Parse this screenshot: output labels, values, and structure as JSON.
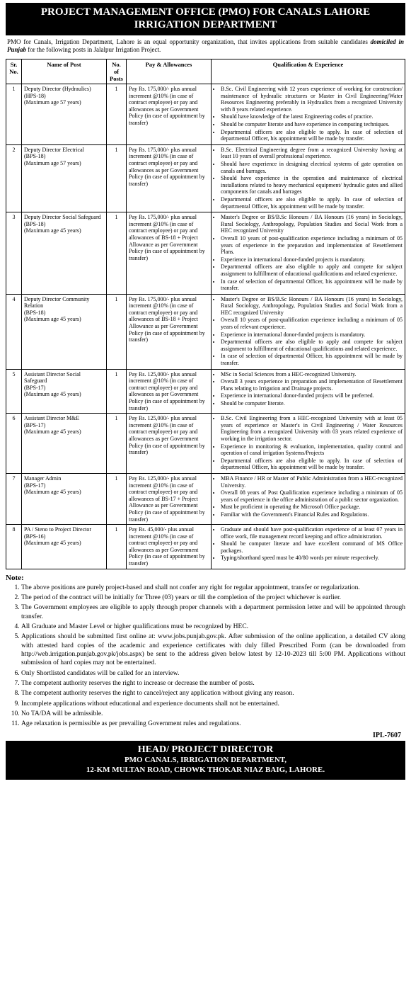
{
  "header": {
    "line1": "PROJECT MANAGEMENT OFFICE (PMO) FOR CANALS LAHORE",
    "line2": "IRRIGATION DEPARTMENT"
  },
  "intro": {
    "prefix": "PMO for Canals, Irrigation Department, Lahore is an equal opportunity organization, that invites applications from suitable candidates ",
    "emph": "domiciled in Punjab",
    "suffix": " for the following posts in Jalalpur Irrigation Project."
  },
  "table": {
    "headers": {
      "sr": "Sr. No.",
      "name": "Name of Post",
      "num": "No. of Posts",
      "pay": "Pay & Allowances",
      "qual": "Qualification & Experience"
    },
    "rows": [
      {
        "sr": "1",
        "name": "Deputy Director (Hydraulics)\n(HPS-18)\n(Maximum age 57 years)",
        "num": "1",
        "pay": "Pay Rs. 175,000/- plus annual increment @10% (in case of contract employee) or pay and allowances as per Government Policy (in case of appointment by transfer)",
        "qual": [
          "B.Sc. Civil Engineering with 12 years experience of working for construction/ maintenance of hydraulic structures or Master in Civil Engineering/Water Resources Engineering preferably in Hydraulics from a recognized University with 8 years related experience.",
          "Should have knowledge of the latest Engineering codes of practice.",
          "Should be computer literate and have experience in computing techniques.",
          "Departmental officers are also eligible to apply. In case of selection of departmental Officer, his appointment will be made by transfer."
        ]
      },
      {
        "sr": "2",
        "name": "Deputy Director Electrical\n(BPS-18)\n(Maximum age 57 years)",
        "num": "1",
        "pay": "Pay Rs. 175,000/- plus annual increment @10% (in case of contract employee) or pay and allowances as per Government Policy (in case of appointment by transfer)",
        "qual": [
          "B.Sc. Electrical Engineering degree from a recognized University having at least 10 years of overall professional experience.",
          "Should have experience in designing electrical systems of gate operation on canals and barrages.",
          "Should have experience in the operation and maintenance of electrical installations related to heavy mechanical equipment/ hydraulic gates and allied components for canals and barrages",
          "Departmental officers are also eligible to apply. In case of selection of departmental Officer, his appointment will be made by transfer."
        ]
      },
      {
        "sr": "3",
        "name": "Deputy Director Social Safeguard\n(BPS-18)\n(Maximum age 45 years)",
        "num": "1",
        "pay": "Pay Rs. 175,000/- plus annual increment @10% (in case of contract employee) or pay and allowances of BS-18 + Project Allowance as per Government Policy (in case of appointment by transfer)",
        "qual": [
          "Master's Degree or BS/B.Sc Honours / BA Honours (16 years) in Sociology, Rural Sociology, Anthropology, Population Studies and Social Work from a HEC recognized University",
          "Overall 10 years of post-qualification experience including a minimum of 05 years of experience in the preparation and implementation of Resettlement Plans.",
          "Experience in international donor-funded projects is mandatory.",
          "Departmental officers are also eligible to apply and compete for subject assignment to fulfillment of educational qualifications and related experience.",
          "In case of selection of departmental Officer, his appointment will be made by transfer."
        ]
      },
      {
        "sr": "4",
        "name": "Deputy Director Community Relation\n(BPS-18)\n(Maximum age 45 years)",
        "num": "1",
        "pay": "Pay Rs. 175,000/- plus annual increment @10% (in case of contract employee) or pay and allowances of BS-18 + Project Allowance as per Government Policy (in case of appointment by transfer)",
        "qual": [
          "Master's Degree or BS/B.Sc Honours / BA Honours (16 years) in Sociology, Rural Sociology, Anthropology, Population Studies and Social Work from a HEC recognized University",
          "Overall 10 years of post-qualification experience including a minimum of 05 years of relevant experience.",
          "Experience in international donor-funded projects is mandatory.",
          "Departmental officers are also eligible to apply and compete for subject assignment to fulfillment of educational qualifications and related experience.",
          "In case of selection of departmental Officer, his appointment will be made by transfer."
        ]
      },
      {
        "sr": "5",
        "name": "Assistant Director Social Safeguard\n(BPS-17)\n(Maximum age 45 years)",
        "num": "1",
        "pay": "Pay Rs. 125,000/- plus annual increment @10% (in case of contract employee) or pay and allowances as per Government Policy (in case of appointment by transfer)",
        "qual": [
          "MSc in Social Sciences from a HEC-recognized University.",
          "Overall 3 years experience in preparation and implementation of Resettlement Plans relating to Irrigation and Drainage projects.",
          "Experience in international donor-funded projects will be preferred.",
          "Should be computer literate."
        ]
      },
      {
        "sr": "6",
        "name": "Assistant Director M&E\n(BPS-17)\n(Maximum age 45 years)",
        "num": "1",
        "pay": "Pay Rs. 125,000/- plus annual increment @10% (in case of contract employee) or pay and allowances as per Government Policy (in case of appointment by transfer)",
        "qual": [
          "B.Sc. Civil Engineering from a HEC-recognized University with at least 05 years of experience or Master's in Civil Engineering / Water Resources Engineering from a recognized University with 03 years related experience of working in the irrigation sector.",
          "Experience in monitoring & evaluation, implementation, quality control and operation of canal irrigation Systems/Projects",
          "Departmental officers are also eligible to apply. In case of selection of departmental Officer, his appointment will be made by transfer."
        ]
      },
      {
        "sr": "7",
        "name": "Manager Admin\n(BPS-17)\n(Maximum age 45 years)",
        "num": "1",
        "pay": "Pay Rs. 125,000/- plus annual increment @10% (in case of contract employee) or pay and allowances of BS-17 + Project Allowance as per Government Policy (in case of appointment by transfer)",
        "qual": [
          "MBA Finance / HR or Master of Public Administration from a HEC-recognized University.",
          "Overall 08 years of Post Qualification experience including a minimum of 05 years of experience in the office administration of a public sector organization.",
          "Must be proficient in operating the Microsoft Office package.",
          "Familiar with the Government's Financial Rules and Regulations."
        ]
      },
      {
        "sr": "8",
        "name": "PA / Steno to Project Director\n(BPS-16)\n(Maximum age 45 years)",
        "num": "1",
        "pay": "Pay Rs. 45,000/- plus annual increment @10% (in case of contract employee) or pay and allowances as per Government Policy (in case of appointment by transfer)",
        "qual": [
          "Graduate and should have post-qualification experience of at least 07 years in office work, file management record keeping and office administration.",
          "Should be computer literate and have excellent command of MS Office packages.",
          "Typing/shorthand speed must be 40/80 words per minute respectively."
        ]
      }
    ]
  },
  "notes": {
    "title": "Note:",
    "items": [
      "The above positions are purely project-based and shall not confer any right for regular appointment, transfer or regularization.",
      "The period of the contract will be initially for Three (03) years or till the completion of the project whichever is earlier.",
      "The Government employees are eligible to apply through proper channels with a department permission letter and will be appointed through transfer.",
      "All Graduate and Master Level or higher qualifications must be recognized by HEC.",
      "Applications should be submitted first online at: www.jobs.punjab.gov.pk. After submission of the online application, a detailed CV along with attested hard copies of the academic and experience certificates with duly filled Prescribed Form (can be downloaded from http://web.irrigation.punjab.gov.pk/jobs.aspx) be sent to the address given below latest by 12-10-2023 till 5:00 PM. Applications without submission of hard copies may not be entertained.",
      "Only Shortlisted candidates will be called for an interview.",
      "The competent authority reserves the right to increase or decrease the number of posts.",
      "The competent authority reserves the right to cancel/reject any application without giving any reason.",
      "Incomplete applications without educational and experience documents shall not be entertained.",
      "No TA/DA will be admissible.",
      "Age relaxation is permissible as per prevailing Government rules and regulations."
    ]
  },
  "ipl": "IPL-7607",
  "footer": {
    "line1": "HEAD/ PROJECT DIRECTOR",
    "line2": "PMO CANALS, IRRIGATION DEPARTMENT,",
    "line3": "12-KM MULTAN ROAD, CHOWK THOKAR NIAZ BAIG, LAHORE."
  }
}
